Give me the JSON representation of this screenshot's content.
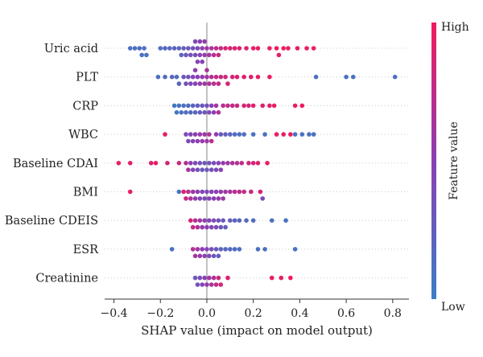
{
  "chart_data": {
    "type": "scatter",
    "subtype": "shap-beeswarm",
    "xlabel": "SHAP value (impact on model output)",
    "xlim": [
      -0.44,
      0.87
    ],
    "xticks": [
      -0.4,
      -0.2,
      0.0,
      0.2,
      0.4,
      0.6,
      0.8
    ],
    "xtick_labels": [
      "−0.4",
      "−0.2",
      "0.0",
      "0.2",
      "0.4",
      "0.6",
      "0.8"
    ],
    "colorbar": {
      "title": "Feature value",
      "high_label": "High",
      "low_label": "Low",
      "low_color": "#3b7ec4",
      "mid_color": "#8b3fb3",
      "high_color": "#f21a5c"
    },
    "grid": false,
    "features": [
      {
        "name": "Uric acid",
        "points": [
          [
            -0.33,
            0.1
          ],
          [
            -0.31,
            0.1
          ],
          [
            -0.29,
            0.15
          ],
          [
            -0.28,
            0.1
          ],
          [
            -0.27,
            0.1
          ],
          [
            -0.26,
            0.1
          ],
          [
            -0.2,
            0.1
          ],
          [
            -0.18,
            0.2
          ],
          [
            -0.16,
            0.15
          ],
          [
            -0.14,
            0.2
          ],
          [
            -0.12,
            0.2
          ],
          [
            -0.11,
            0.2
          ],
          [
            -0.1,
            0.25
          ],
          [
            -0.09,
            0.3
          ],
          [
            -0.08,
            0.3
          ],
          [
            -0.07,
            0.35
          ],
          [
            -0.06,
            0.35
          ],
          [
            -0.05,
            0.4
          ],
          [
            -0.05,
            0.4
          ],
          [
            -0.04,
            0.4
          ],
          [
            -0.04,
            0.45
          ],
          [
            -0.03,
            0.45
          ],
          [
            -0.03,
            0.5
          ],
          [
            -0.02,
            0.5
          ],
          [
            -0.02,
            0.5
          ],
          [
            -0.01,
            0.55
          ],
          [
            -0.01,
            0.55
          ],
          [
            0.0,
            0.6
          ],
          [
            0.01,
            0.6
          ],
          [
            0.02,
            0.65
          ],
          [
            0.03,
            0.7
          ],
          [
            0.04,
            0.75
          ],
          [
            0.05,
            0.8
          ],
          [
            0.06,
            0.8
          ],
          [
            0.08,
            0.85
          ],
          [
            0.1,
            0.9
          ],
          [
            0.12,
            0.85
          ],
          [
            0.14,
            0.9
          ],
          [
            0.17,
            0.9
          ],
          [
            0.2,
            0.95
          ],
          [
            0.22,
            0.95
          ],
          [
            0.27,
            0.95
          ],
          [
            0.3,
            1.0
          ],
          [
            0.31,
            0.95
          ],
          [
            0.33,
            1.0
          ],
          [
            0.35,
            0.95
          ],
          [
            0.39,
            0.95
          ],
          [
            0.43,
            1.0
          ],
          [
            0.46,
            0.95
          ]
        ]
      },
      {
        "name": "PLT",
        "points": [
          [
            -0.21,
            0.1
          ],
          [
            -0.18,
            0.15
          ],
          [
            -0.15,
            0.2
          ],
          [
            -0.13,
            0.15
          ],
          [
            -0.12,
            0.2
          ],
          [
            -0.1,
            0.3
          ],
          [
            -0.09,
            0.35
          ],
          [
            -0.08,
            0.35
          ],
          [
            -0.07,
            0.4
          ],
          [
            -0.06,
            0.45
          ],
          [
            -0.05,
            0.45
          ],
          [
            -0.05,
            0.5
          ],
          [
            -0.04,
            0.5
          ],
          [
            -0.03,
            0.55
          ],
          [
            -0.02,
            0.55
          ],
          [
            -0.01,
            0.6
          ],
          [
            0.0,
            0.6
          ],
          [
            0.0,
            0.65
          ],
          [
            0.01,
            0.65
          ],
          [
            0.02,
            0.7
          ],
          [
            0.03,
            0.7
          ],
          [
            0.04,
            0.75
          ],
          [
            0.05,
            0.75
          ],
          [
            0.06,
            0.8
          ],
          [
            0.08,
            0.8
          ],
          [
            0.09,
            0.85
          ],
          [
            0.11,
            0.85
          ],
          [
            0.13,
            0.9
          ],
          [
            0.16,
            0.9
          ],
          [
            0.19,
            0.9
          ],
          [
            0.22,
            0.95
          ],
          [
            0.27,
            0.95
          ],
          [
            0.47,
            0.1
          ],
          [
            0.6,
            0.1
          ],
          [
            0.63,
            0.1
          ],
          [
            0.81,
            0.1
          ]
        ]
      },
      {
        "name": "CRP",
        "points": [
          [
            -0.14,
            0.05
          ],
          [
            -0.13,
            0.05
          ],
          [
            -0.12,
            0.1
          ],
          [
            -0.11,
            0.1
          ],
          [
            -0.1,
            0.1
          ],
          [
            -0.09,
            0.15
          ],
          [
            -0.08,
            0.15
          ],
          [
            -0.07,
            0.15
          ],
          [
            -0.06,
            0.2
          ],
          [
            -0.05,
            0.2
          ],
          [
            -0.04,
            0.25
          ],
          [
            -0.03,
            0.25
          ],
          [
            -0.02,
            0.3
          ],
          [
            -0.01,
            0.3
          ],
          [
            0.0,
            0.35
          ],
          [
            0.01,
            0.4
          ],
          [
            0.02,
            0.5
          ],
          [
            0.03,
            0.55
          ],
          [
            0.04,
            0.6
          ],
          [
            0.05,
            0.65
          ],
          [
            0.07,
            0.7
          ],
          [
            0.09,
            0.75
          ],
          [
            0.11,
            0.75
          ],
          [
            0.13,
            0.8
          ],
          [
            0.16,
            0.85
          ],
          [
            0.18,
            0.85
          ],
          [
            0.2,
            0.9
          ],
          [
            0.24,
            0.9
          ],
          [
            0.27,
            0.95
          ],
          [
            0.29,
            0.95
          ],
          [
            0.38,
            0.95
          ],
          [
            0.41,
            1.0
          ]
        ]
      },
      {
        "name": "WBC",
        "points": [
          [
            -0.18,
            0.95
          ],
          [
            -0.09,
            0.4
          ],
          [
            -0.08,
            0.4
          ],
          [
            -0.07,
            0.45
          ],
          [
            -0.06,
            0.45
          ],
          [
            -0.05,
            0.5
          ],
          [
            -0.04,
            0.5
          ],
          [
            -0.03,
            0.55
          ],
          [
            -0.02,
            0.55
          ],
          [
            -0.01,
            0.6
          ],
          [
            0.0,
            0.6
          ],
          [
            0.01,
            0.65
          ],
          [
            0.02,
            0.7
          ],
          [
            0.04,
            0.5
          ],
          [
            0.06,
            0.3
          ],
          [
            0.08,
            0.25
          ],
          [
            0.1,
            0.2
          ],
          [
            0.12,
            0.15
          ],
          [
            0.14,
            0.15
          ],
          [
            0.16,
            0.1
          ],
          [
            0.2,
            0.1
          ],
          [
            0.25,
            0.1
          ],
          [
            0.3,
            0.95
          ],
          [
            0.33,
            0.95
          ],
          [
            0.36,
            1.0
          ],
          [
            0.38,
            0.1
          ],
          [
            0.41,
            0.1
          ],
          [
            0.44,
            0.1
          ],
          [
            0.46,
            0.1
          ]
        ]
      },
      {
        "name": "Baseline CDAI",
        "points": [
          [
            -0.38,
            0.95
          ],
          [
            -0.33,
            0.9
          ],
          [
            -0.24,
            0.9
          ],
          [
            -0.22,
            0.95
          ],
          [
            -0.17,
            0.85
          ],
          [
            -0.12,
            0.8
          ],
          [
            -0.09,
            0.7
          ],
          [
            -0.08,
            0.6
          ],
          [
            -0.07,
            0.5
          ],
          [
            -0.06,
            0.45
          ],
          [
            -0.05,
            0.4
          ],
          [
            -0.04,
            0.35
          ],
          [
            -0.03,
            0.35
          ],
          [
            -0.02,
            0.3
          ],
          [
            -0.01,
            0.3
          ],
          [
            0.0,
            0.3
          ],
          [
            0.01,
            0.35
          ],
          [
            0.02,
            0.35
          ],
          [
            0.03,
            0.4
          ],
          [
            0.04,
            0.4
          ],
          [
            0.05,
            0.45
          ],
          [
            0.06,
            0.5
          ],
          [
            0.07,
            0.55
          ],
          [
            0.09,
            0.6
          ],
          [
            0.11,
            0.65
          ],
          [
            0.13,
            0.7
          ],
          [
            0.15,
            0.75
          ],
          [
            0.18,
            0.8
          ],
          [
            0.2,
            0.85
          ],
          [
            0.22,
            0.9
          ],
          [
            0.26,
            0.95
          ]
        ]
      },
      {
        "name": "BMI",
        "points": [
          [
            -0.33,
            0.95
          ],
          [
            -0.12,
            0.1
          ],
          [
            -0.1,
            0.9
          ],
          [
            -0.09,
            0.8
          ],
          [
            -0.08,
            0.7
          ],
          [
            -0.07,
            0.65
          ],
          [
            -0.06,
            0.6
          ],
          [
            -0.05,
            0.55
          ],
          [
            -0.04,
            0.5
          ],
          [
            -0.03,
            0.45
          ],
          [
            -0.02,
            0.45
          ],
          [
            -0.01,
            0.4
          ],
          [
            0.0,
            0.4
          ],
          [
            0.01,
            0.45
          ],
          [
            0.02,
            0.45
          ],
          [
            0.03,
            0.5
          ],
          [
            0.04,
            0.5
          ],
          [
            0.05,
            0.55
          ],
          [
            0.06,
            0.55
          ],
          [
            0.07,
            0.6
          ],
          [
            0.08,
            0.6
          ],
          [
            0.1,
            0.65
          ],
          [
            0.12,
            0.7
          ],
          [
            0.14,
            0.75
          ],
          [
            0.16,
            0.75
          ],
          [
            0.19,
            0.8
          ],
          [
            0.23,
            0.85
          ],
          [
            0.24,
            0.4
          ]
        ]
      },
      {
        "name": "Baseline CDEIS",
        "points": [
          [
            -0.07,
            0.85
          ],
          [
            -0.06,
            0.8
          ],
          [
            -0.05,
            0.7
          ],
          [
            -0.04,
            0.65
          ],
          [
            -0.03,
            0.6
          ],
          [
            -0.02,
            0.55
          ],
          [
            -0.01,
            0.5
          ],
          [
            0.0,
            0.5
          ],
          [
            0.01,
            0.45
          ],
          [
            0.02,
            0.45
          ],
          [
            0.03,
            0.4
          ],
          [
            0.04,
            0.4
          ],
          [
            0.05,
            0.35
          ],
          [
            0.06,
            0.3
          ],
          [
            0.07,
            0.3
          ],
          [
            0.08,
            0.25
          ],
          [
            0.1,
            0.25
          ],
          [
            0.12,
            0.2
          ],
          [
            0.14,
            0.2
          ],
          [
            0.17,
            0.15
          ],
          [
            0.2,
            0.15
          ],
          [
            0.28,
            0.1
          ],
          [
            0.34,
            0.1
          ]
        ]
      },
      {
        "name": "ESR",
        "points": [
          [
            -0.15,
            0.1
          ],
          [
            -0.06,
            0.7
          ],
          [
            -0.05,
            0.65
          ],
          [
            -0.04,
            0.6
          ],
          [
            -0.03,
            0.55
          ],
          [
            -0.02,
            0.5
          ],
          [
            -0.01,
            0.5
          ],
          [
            0.0,
            0.45
          ],
          [
            0.01,
            0.4
          ],
          [
            0.02,
            0.35
          ],
          [
            0.03,
            0.3
          ],
          [
            0.04,
            0.3
          ],
          [
            0.05,
            0.25
          ],
          [
            0.06,
            0.2
          ],
          [
            0.08,
            0.2
          ],
          [
            0.1,
            0.15
          ],
          [
            0.12,
            0.15
          ],
          [
            0.14,
            0.1
          ],
          [
            0.22,
            0.1
          ],
          [
            0.25,
            0.1
          ],
          [
            0.38,
            0.1
          ]
        ]
      },
      {
        "name": "Creatinine",
        "points": [
          [
            -0.05,
            0.3
          ],
          [
            -0.04,
            0.35
          ],
          [
            -0.03,
            0.4
          ],
          [
            -0.02,
            0.45
          ],
          [
            -0.01,
            0.5
          ],
          [
            0.0,
            0.55
          ],
          [
            0.01,
            0.6
          ],
          [
            0.02,
            0.65
          ],
          [
            0.03,
            0.7
          ],
          [
            0.04,
            0.75
          ],
          [
            0.05,
            0.8
          ],
          [
            0.06,
            0.85
          ],
          [
            0.09,
            0.9
          ],
          [
            0.28,
            0.95
          ],
          [
            0.32,
            0.95
          ],
          [
            0.36,
            1.0
          ]
        ]
      }
    ]
  }
}
